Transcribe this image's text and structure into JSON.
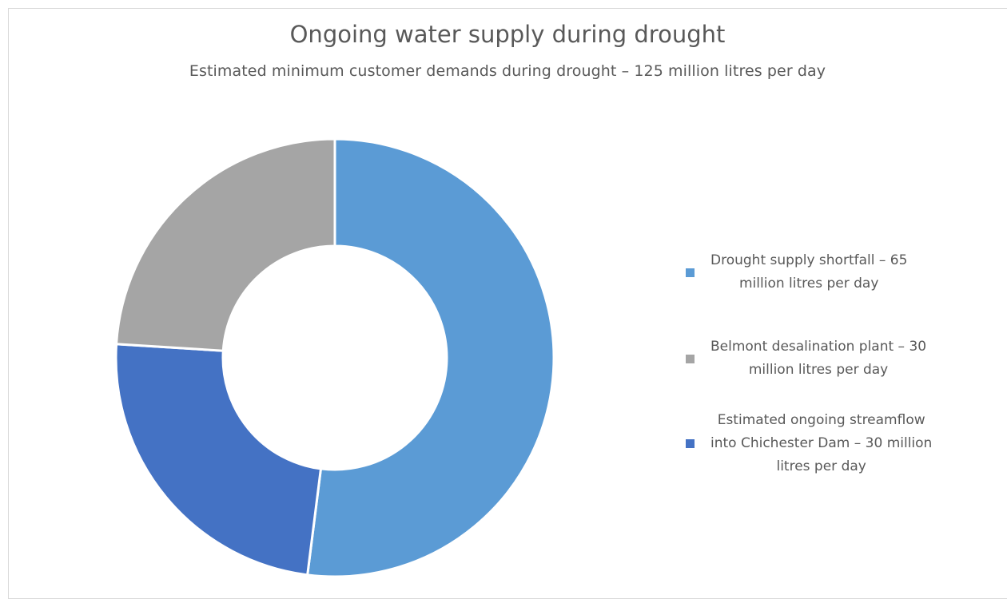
{
  "chart_data": {
    "type": "pie",
    "title": "Ongoing water supply during drought",
    "subtitle": "Estimated minimum customer demands during drought – 125 million litres per day",
    "slices": [
      {
        "label": "Drought supply shortfall – 65 million litres per day",
        "value": 65,
        "color": "#5B9BD5"
      },
      {
        "label": "Estimated ongoing streamflow into Chichester Dam – 30 million litres per day",
        "value": 30,
        "color": "#4472C4"
      },
      {
        "label": "Belmont desalination plant – 30 million litres per day",
        "value": 30,
        "color": "#A5A5A5"
      }
    ],
    "legend": {
      "position": "right",
      "items": [
        {
          "lines": [
            "Drought supply shortfall – 65",
            "million litres per day"
          ],
          "color": "#5B9BD5"
        },
        {
          "lines": [
            "Belmont desalination plant – 30",
            "million litres per day"
          ],
          "color": "#A5A5A5"
        },
        {
          "lines": [
            "Estimated ongoing streamflow",
            "into Chichester Dam – 30 million",
            "litres per day"
          ],
          "color": "#4472C4"
        }
      ]
    }
  }
}
